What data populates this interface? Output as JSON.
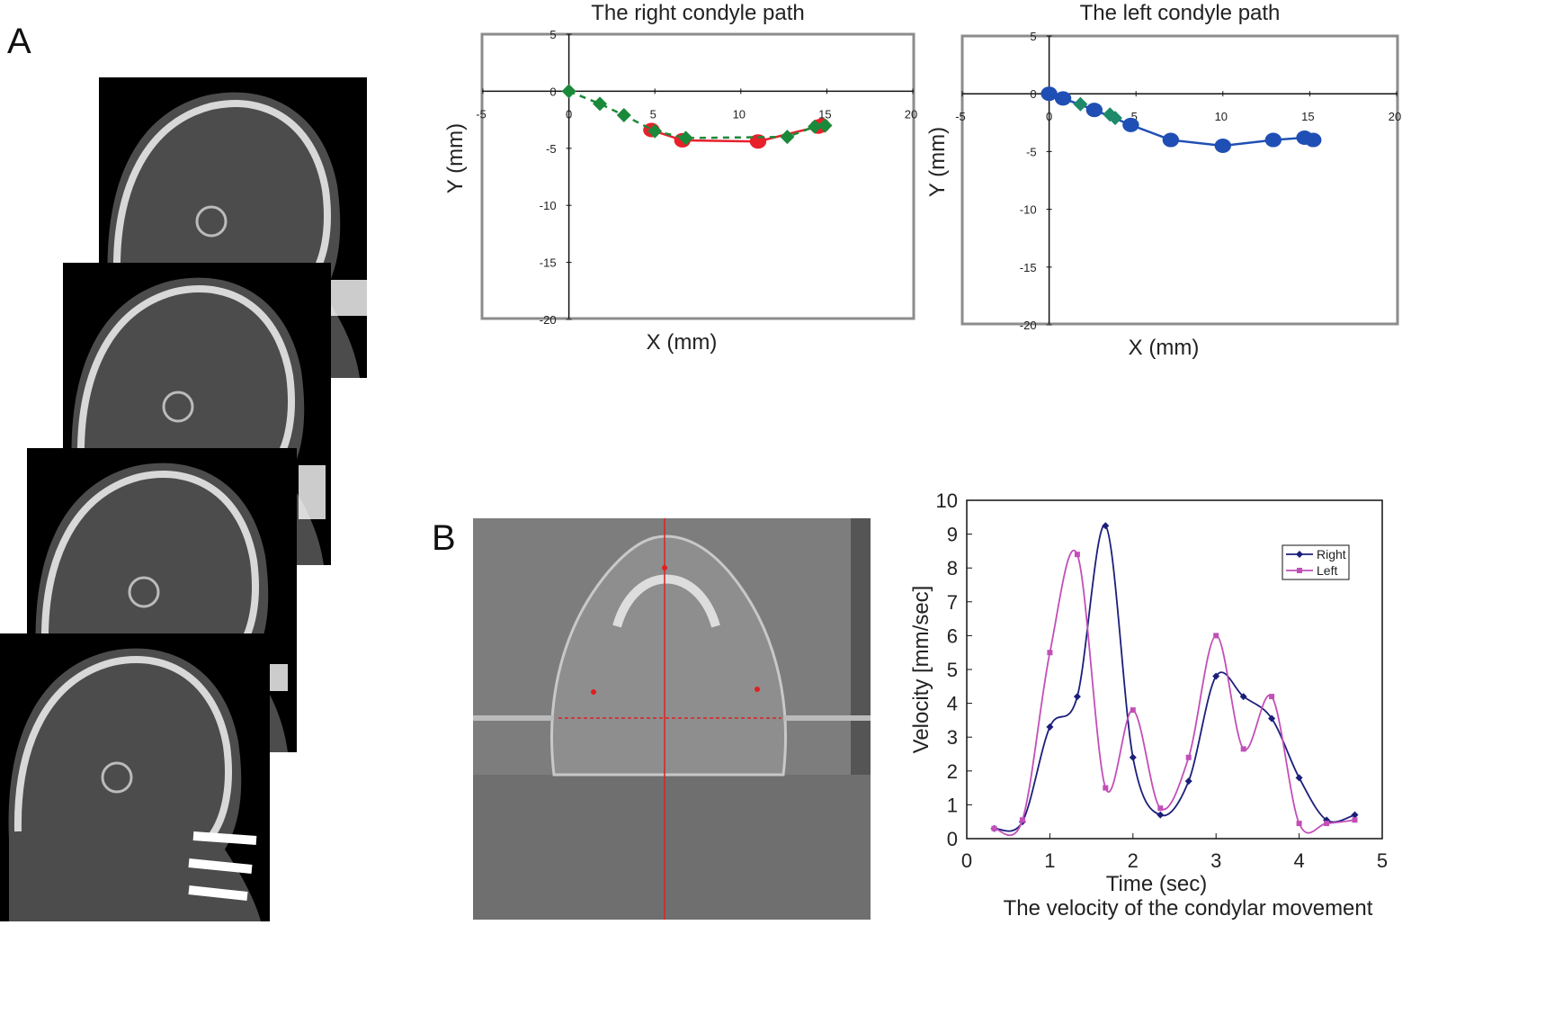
{
  "panels": {
    "a_label": "A",
    "b_label": "B"
  },
  "chart_data": [
    {
      "type": "line",
      "title": "The right condyle path",
      "xlabel": "X (mm)",
      "ylabel": "Y (mm)",
      "xlim": [
        -5,
        20
      ],
      "ylim": [
        -20,
        5
      ],
      "xticks": [
        -5,
        0,
        5,
        10,
        15,
        20
      ],
      "yticks": [
        5,
        0,
        -5,
        -10,
        -15,
        -20
      ],
      "grid": false,
      "series": [
        {
          "color": "#e8202a",
          "marker": "circle",
          "linestyle": "solid",
          "points": [
            [
              4.8,
              -3.4
            ],
            [
              6.6,
              -4.3
            ],
            [
              11.0,
              -4.4
            ],
            [
              14.5,
              -3.1
            ],
            [
              14.7,
              -3.0
            ]
          ]
        },
        {
          "color": "#1a8a3a",
          "marker": "diamond",
          "linestyle": "dashed",
          "points": [
            [
              0,
              0
            ],
            [
              1.8,
              -1.1
            ],
            [
              3.2,
              -2.1
            ],
            [
              5.0,
              -3.5
            ],
            [
              6.8,
              -4.1
            ],
            [
              12.7,
              -4.0
            ],
            [
              14.3,
              -3.1
            ],
            [
              14.9,
              -3.0
            ]
          ]
        }
      ]
    },
    {
      "type": "line",
      "title": "The left condyle path",
      "xlabel": "X (mm)",
      "ylabel": "Y (mm)",
      "xlim": [
        -5,
        20
      ],
      "ylim": [
        -20,
        5
      ],
      "xticks": [
        -5,
        0,
        5,
        10,
        15,
        20
      ],
      "yticks": [
        5,
        0,
        -5,
        -10,
        -15,
        -20
      ],
      "grid": false,
      "series": [
        {
          "color": "#1f4fb4",
          "marker": "circle",
          "linestyle": "solid",
          "points": [
            [
              0,
              0
            ],
            [
              0.8,
              -0.4
            ],
            [
              2.6,
              -1.4
            ],
            [
              4.7,
              -2.7
            ],
            [
              7.0,
              -4.0
            ],
            [
              10.0,
              -4.5
            ],
            [
              12.9,
              -4.0
            ],
            [
              14.7,
              -3.8
            ],
            [
              15.2,
              -4.0
            ]
          ]
        },
        {
          "color": "#1e8a6a",
          "marker": "diamond",
          "linestyle": "none",
          "points": [
            [
              1.8,
              -0.9
            ],
            [
              3.5,
              -1.8
            ],
            [
              3.8,
              -2.1
            ]
          ]
        }
      ]
    },
    {
      "type": "line",
      "title": "The velocity of the condylar movement",
      "xlabel": "Time (sec)",
      "ylabel": "Velocity [mm/sec]",
      "xlim": [
        0,
        5
      ],
      "ylim": [
        0,
        10
      ],
      "xticks": [
        0,
        1,
        2,
        3,
        4,
        5
      ],
      "yticks": [
        0,
        1,
        2,
        3,
        4,
        5,
        6,
        7,
        8,
        9,
        10
      ],
      "grid": false,
      "legend": "top-right",
      "series": [
        {
          "name": "Right",
          "color": "#1b1f7a",
          "marker": "diamond",
          "points": [
            [
              0.33,
              0.3
            ],
            [
              0.67,
              0.5
            ],
            [
              1.0,
              3.3
            ],
            [
              1.33,
              4.2
            ],
            [
              1.67,
              9.25
            ],
            [
              2.0,
              2.4
            ],
            [
              2.33,
              0.7
            ],
            [
              2.67,
              1.7
            ],
            [
              3.0,
              4.8
            ],
            [
              3.33,
              4.2
            ],
            [
              3.67,
              3.55
            ],
            [
              4.0,
              1.8
            ],
            [
              4.33,
              0.55
            ],
            [
              4.67,
              0.7
            ]
          ]
        },
        {
          "name": "Left",
          "color": "#c24fb8",
          "marker": "square",
          "points": [
            [
              0.33,
              0.3
            ],
            [
              0.67,
              0.55
            ],
            [
              1.0,
              5.5
            ],
            [
              1.33,
              8.4
            ],
            [
              1.67,
              1.5
            ],
            [
              2.0,
              3.8
            ],
            [
              2.33,
              0.9
            ],
            [
              2.67,
              2.4
            ],
            [
              3.0,
              6.0
            ],
            [
              3.33,
              2.65
            ],
            [
              3.67,
              4.2
            ],
            [
              4.0,
              0.45
            ],
            [
              4.33,
              0.45
            ],
            [
              4.67,
              0.55
            ]
          ]
        }
      ]
    }
  ]
}
